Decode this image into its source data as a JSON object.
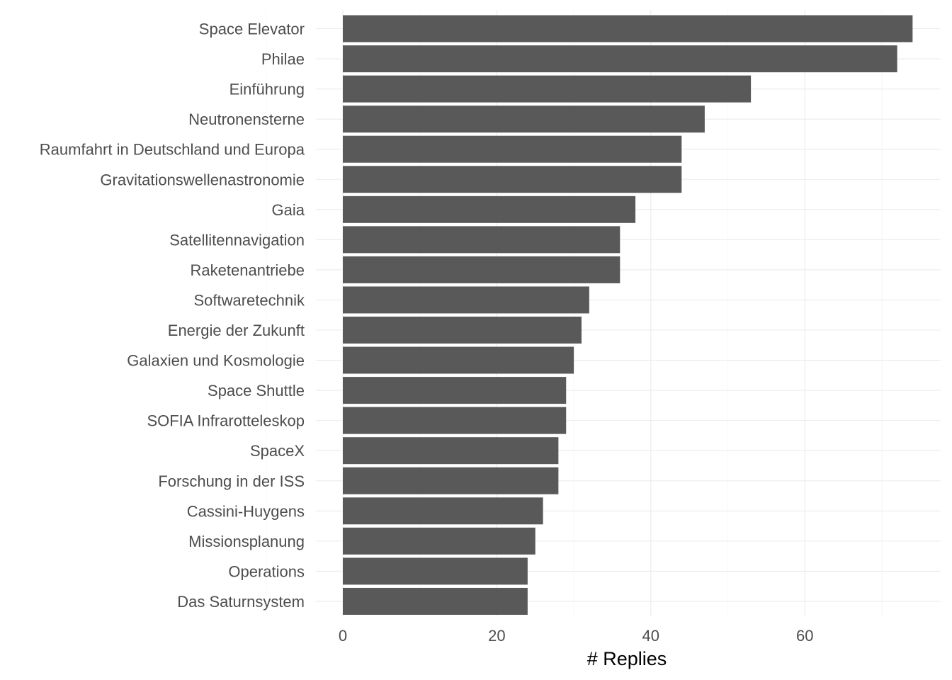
{
  "chart_data": {
    "type": "bar",
    "orientation": "horizontal",
    "categories": [
      "Space Elevator",
      "Philae",
      "Einführung",
      "Neutronensterne",
      "Raumfahrt in Deutschland und Europa",
      "Gravitationswellenastronomie",
      "Gaia",
      "Satellitennavigation",
      "Raketenantriebe",
      "Softwaretechnik",
      "Energie der Zukunft",
      "Galaxien und Kosmologie",
      "Space Shuttle",
      "SOFIA Infrarotteleskop",
      "SpaceX",
      "Forschung in der ISS",
      "Cassini-Huygens",
      "Missionsplanung",
      "Operations",
      "Das Saturnsystem"
    ],
    "values": [
      74,
      72,
      53,
      47,
      44,
      44,
      38,
      36,
      36,
      32,
      31,
      30,
      29,
      29,
      28,
      28,
      26,
      25,
      24,
      24
    ],
    "xlabel": "# Replies",
    "ylabel": "",
    "title": "",
    "xlim": [
      0,
      77
    ],
    "xticks": [
      0,
      20,
      40,
      60
    ],
    "xtick_labels": [
      "0",
      "20",
      "40",
      "60"
    ],
    "grid": true,
    "bar_color": "#595959"
  }
}
